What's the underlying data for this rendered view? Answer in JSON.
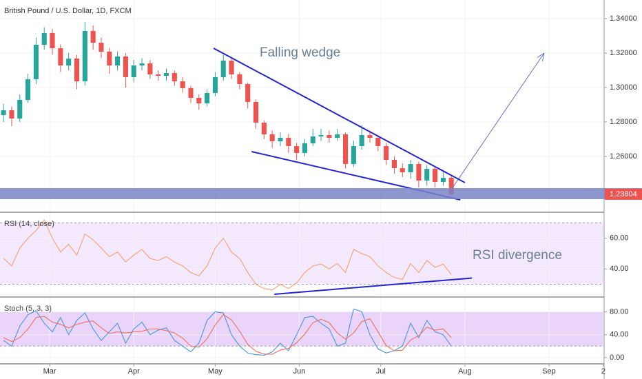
{
  "title": "British Pound / U.S. Dollar, 1D, FXCM",
  "chart_data": [
    {
      "type": "candlestick",
      "annotation": "Falling wedge",
      "x": [
        12,
        15,
        18,
        21,
        24,
        27,
        30,
        33,
        36,
        39,
        42,
        45,
        48,
        51,
        54,
        57,
        60,
        63,
        66,
        69,
        72,
        75,
        78,
        81,
        84,
        87,
        90,
        93,
        96,
        99,
        102,
        105,
        108,
        111,
        114,
        117,
        120,
        123,
        126,
        129,
        132,
        135,
        138,
        141,
        144,
        147,
        150,
        153,
        156,
        159,
        162,
        165,
        168,
        171,
        174,
        177
      ],
      "open": [
        1.284,
        1.2868,
        1.282,
        1.2928,
        1.3048,
        1.3248,
        1.3316,
        1.3228,
        1.3128,
        1.3168,
        1.3036,
        1.3328,
        1.326,
        1.3208,
        1.3128,
        1.318,
        1.306,
        1.3128,
        1.314,
        1.3076,
        1.3068,
        1.3084,
        1.3036,
        1.2996,
        1.294,
        1.2908,
        1.2968,
        1.306,
        1.3156,
        1.3076,
        1.302,
        1.2916,
        1.2796,
        1.2728,
        1.2688,
        1.2708,
        1.266,
        1.262,
        1.2676,
        1.2716,
        1.2724,
        1.2708,
        1.2728,
        1.2556,
        1.266,
        1.2724,
        1.2708,
        1.266,
        1.258,
        1.2532,
        1.2508,
        1.2556,
        1.246,
        1.2528,
        1.2452,
        1.2476
      ],
      "high": [
        1.2905,
        1.289,
        1.296,
        1.308,
        1.329,
        1.335,
        1.334,
        1.325,
        1.32,
        1.319,
        1.338,
        1.336,
        1.329,
        1.323,
        1.321,
        1.32,
        1.316,
        1.317,
        1.316,
        1.31,
        1.311,
        1.31,
        1.306,
        1.301,
        1.296,
        1.299,
        1.309,
        1.319,
        1.317,
        1.309,
        1.303,
        1.293,
        1.281,
        1.275,
        1.274,
        1.273,
        1.268,
        1.27,
        1.276,
        1.276,
        1.275,
        1.276,
        1.274,
        1.269,
        1.278,
        1.275,
        1.272,
        1.268,
        1.26,
        1.256,
        1.258,
        1.257,
        1.255,
        1.254,
        1.251,
        1.249
      ],
      "low": [
        1.28,
        1.2775,
        1.28,
        1.291,
        1.302,
        1.322,
        1.319,
        1.309,
        1.31,
        1.299,
        1.301,
        1.322,
        1.317,
        1.308,
        1.31,
        1.3,
        1.303,
        1.31,
        1.305,
        1.304,
        1.304,
        1.301,
        1.297,
        1.291,
        1.287,
        1.289,
        1.295,
        1.304,
        1.305,
        1.299,
        1.288,
        1.276,
        1.27,
        1.265,
        1.266,
        1.262,
        1.258,
        1.26,
        1.266,
        1.269,
        1.268,
        1.269,
        1.253,
        1.254,
        1.264,
        1.268,
        1.263,
        1.255,
        1.25,
        1.248,
        1.247,
        1.242,
        1.243,
        1.242,
        1.243,
        1.237
      ],
      "close": [
        1.2868,
        1.282,
        1.2928,
        1.3048,
        1.3248,
        1.3316,
        1.3228,
        1.3128,
        1.3168,
        1.3036,
        1.3328,
        1.326,
        1.3208,
        1.3128,
        1.318,
        1.306,
        1.3128,
        1.314,
        1.3076,
        1.3068,
        1.3084,
        1.3036,
        1.2996,
        1.294,
        1.2908,
        1.2968,
        1.306,
        1.3156,
        1.3076,
        1.302,
        1.2916,
        1.2796,
        1.2728,
        1.2688,
        1.2708,
        1.266,
        1.262,
        1.2676,
        1.2716,
        1.2724,
        1.2708,
        1.2728,
        1.2556,
        1.266,
        1.2724,
        1.2708,
        1.266,
        1.258,
        1.2532,
        1.2508,
        1.2556,
        1.246,
        1.2528,
        1.2452,
        1.2476,
        1.23804
      ],
      "up_color": "#26a69a",
      "down_color": "#ef5350",
      "ylim": [
        1.2276,
        1.3508
      ],
      "yticks": [
        {
          "value": 1.26,
          "label": "1.26000"
        },
        {
          "value": 1.28,
          "label": "1.28000"
        },
        {
          "value": 1.3,
          "label": "1.30000"
        },
        {
          "value": 1.32,
          "label": "1.32000"
        },
        {
          "value": 1.34,
          "label": "1.34000"
        }
      ],
      "last_price": {
        "value": 1.23804,
        "label": "1.23804"
      },
      "zone": [
        1.2352,
        1.2416
      ],
      "zone_color": "#7a84c8",
      "trendlines": [
        {
          "x": [
            89.4,
            182
          ],
          "y": [
            1.3228,
            1.2448
          ],
          "color": "#2323d3"
        },
        {
          "x": [
            103.4,
            180.3
          ],
          "y": [
            1.2628,
            1.2348
          ],
          "color": "#2323d3"
        }
      ],
      "arrow": {
        "x": [
          177,
          211.2
        ],
        "y": [
          1.2408,
          1.32
        ],
        "color": "#6470c4"
      },
      "grid": true
    },
    {
      "type": "line",
      "title": "RSI (14, close)",
      "annotation": "RSI divergence",
      "values": [
        46.8,
        42,
        53.6,
        60,
        65,
        71.8,
        60,
        51,
        56,
        49,
        62.7,
        59,
        53.6,
        48,
        51,
        44.5,
        49,
        52.7,
        46.8,
        45.5,
        48,
        44.5,
        42,
        37.7,
        35.5,
        42,
        53.6,
        60,
        51,
        46.8,
        37.7,
        30,
        27.3,
        26.4,
        30,
        27.3,
        31,
        37.7,
        42,
        43.2,
        40,
        43.6,
        37.7,
        52.7,
        50,
        48,
        42,
        37.7,
        34.5,
        33.2,
        43.6,
        37.7,
        45.5,
        41,
        43.2,
        36.4
      ],
      "color": "#f0a070",
      "ylim": [
        21.8,
        76.4
      ],
      "yticks": [
        {
          "value": 40,
          "label": "40.00"
        },
        {
          "value": 60,
          "label": "60.00"
        }
      ],
      "band": [
        30,
        70
      ],
      "band_color": "#f4e8fc",
      "trendlines": [
        {
          "x": [
            111.8,
            184.6
          ],
          "y": [
            23.6,
            34.1
          ],
          "color": "#2323d3"
        }
      ],
      "grid": true
    },
    {
      "type": "line",
      "title": "Stoch (5, 3, 3)",
      "series": [
        {
          "color": "#4a95d8",
          "values": [
            30,
            20,
            55,
            75,
            82,
            60,
            45,
            70,
            40,
            65,
            78,
            50,
            30,
            45,
            60,
            25,
            50,
            62,
            40,
            48,
            52,
            30,
            20,
            10,
            25,
            65,
            80,
            78,
            40,
            20,
            8,
            5,
            4,
            10,
            25,
            12,
            40,
            70,
            72,
            60,
            50,
            20,
            25,
            85,
            80,
            40,
            15,
            8,
            12,
            20,
            60,
            35,
            65,
            45,
            40,
            20
          ]
        },
        {
          "color": "#ef6f5c",
          "values": [
            35,
            28,
            35,
            50,
            70,
            72,
            62,
            58,
            52,
            58,
            62,
            64,
            52,
            42,
            45,
            43,
            45,
            46,
            50,
            50,
            47,
            43,
            34,
            20,
            18,
            33,
            57,
            75,
            66,
            46,
            23,
            11,
            6,
            6,
            13,
            16,
            26,
            41,
            61,
            67,
            61,
            43,
            32,
            43,
            63,
            68,
            45,
            21,
            12,
            13,
            31,
            38,
            53,
            48,
            50,
            35
          ]
        }
      ],
      "ylim": [
        -11,
        104.7
      ],
      "yticks": [
        {
          "value": 0,
          "label": "0.00"
        },
        {
          "value": 40,
          "label": "40.00"
        },
        {
          "value": 80,
          "label": "80.00"
        }
      ],
      "band": [
        20,
        80
      ],
      "band_color": "#ead4fa",
      "xlim": [
        10.7,
        233.3
      ],
      "xticks": [
        {
          "value": 29,
          "label": "Mar"
        },
        {
          "value": 60,
          "label": "Apr"
        },
        {
          "value": 90,
          "label": "May"
        },
        {
          "value": 121,
          "label": "Jun"
        },
        {
          "value": 151,
          "label": "Jul"
        },
        {
          "value": 182,
          "label": "Aug"
        },
        {
          "value": 213,
          "label": "Sep"
        },
        {
          "value": 233,
          "label": "2"
        }
      ],
      "grid": true
    }
  ]
}
